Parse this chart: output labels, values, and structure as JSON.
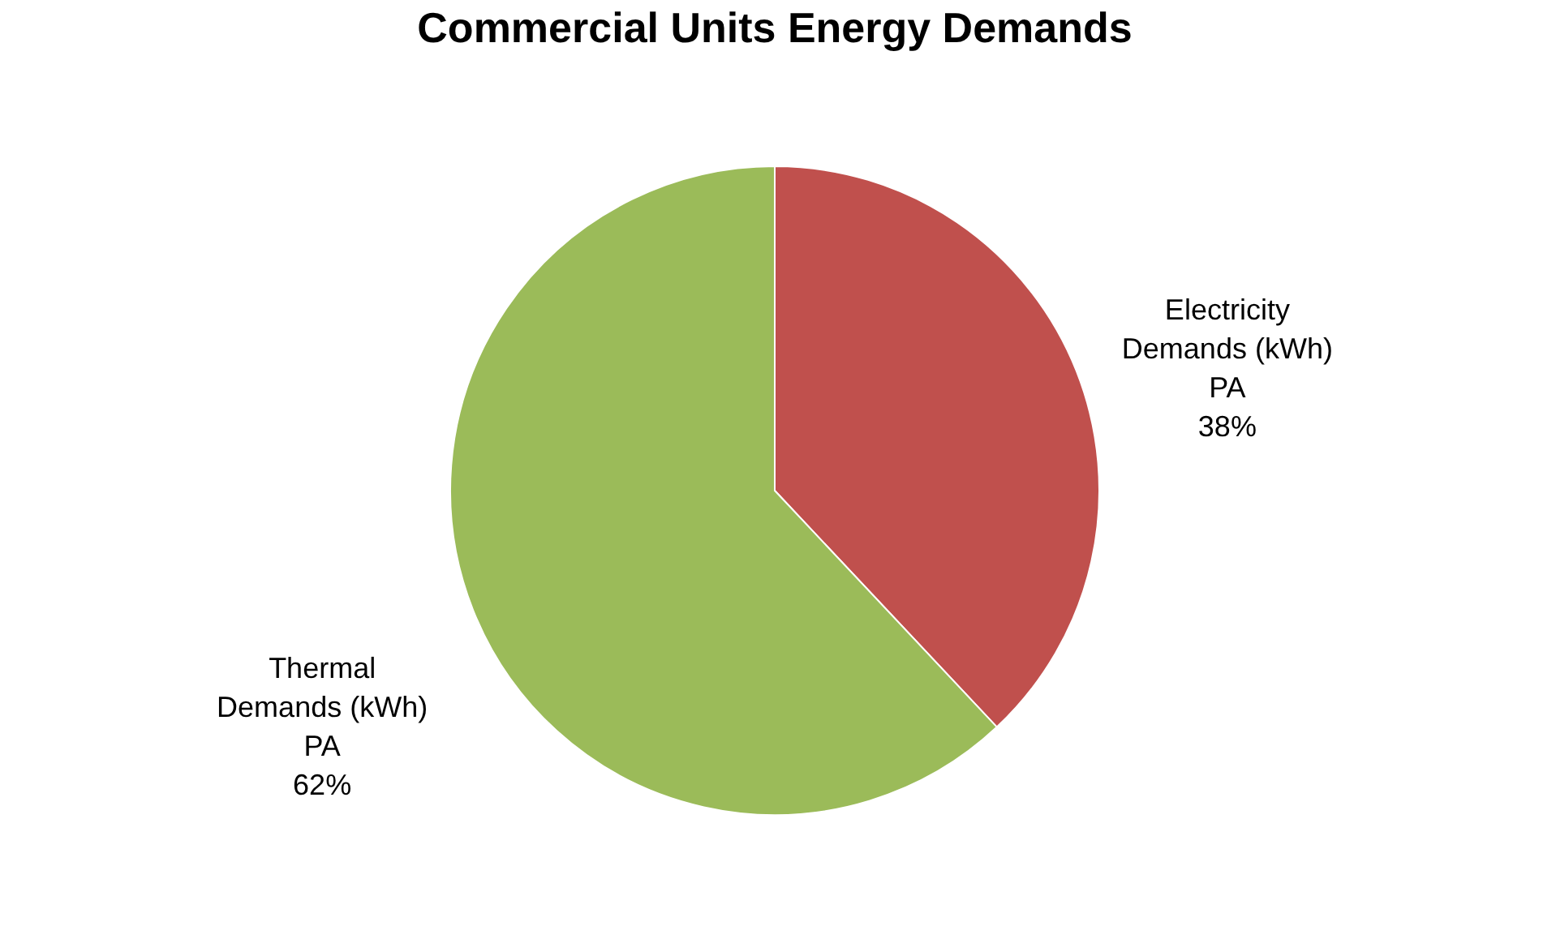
{
  "chart_data": {
    "type": "pie",
    "title": "Commercial Units Energy Demands",
    "categories": [
      "Electricity Demands (kWh) PA",
      "Thermal Demands (kWh) PA"
    ],
    "values": [
      38,
      62
    ],
    "colors": [
      "#c0504d",
      "#9bbb59"
    ],
    "value_labels": [
      "38%",
      "62%"
    ],
    "legend": false
  }
}
